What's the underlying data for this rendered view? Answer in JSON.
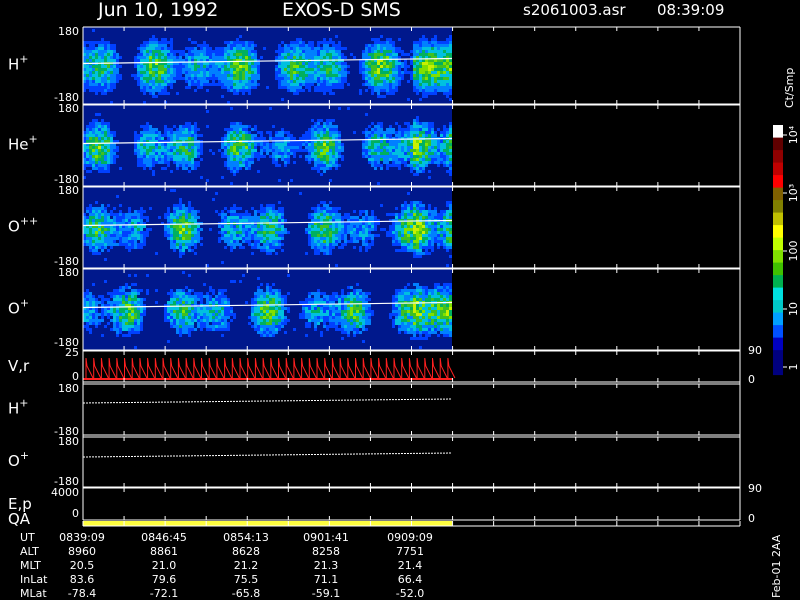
{
  "header": {
    "date": "Jun 10, 1992",
    "instrument": "EXOS-D SMS",
    "file": "s2061003.asr",
    "time": "08:39:09"
  },
  "panels": [
    {
      "label": "H",
      "sup": "+",
      "yticks": [
        180,
        -180
      ]
    },
    {
      "label": "He",
      "sup": "+",
      "yticks": [
        180,
        -180
      ]
    },
    {
      "label": "O",
      "sup": "++",
      "yticks": [
        180,
        -180
      ]
    },
    {
      "label": "O",
      "sup": "+",
      "yticks": [
        180,
        -180
      ]
    },
    {
      "label": "V,r",
      "yticks": [
        25,
        0
      ],
      "y2ticks": [
        90,
        0
      ]
    },
    {
      "label": "H",
      "sup": "+",
      "yticks": [
        180,
        -180
      ]
    },
    {
      "label": "O",
      "sup": "+",
      "yticks": [
        180,
        -180
      ]
    },
    {
      "label": "E,p",
      "label2": "QA",
      "yticks": [
        4000,
        0
      ],
      "y2ticks": [
        90,
        0
      ]
    }
  ],
  "colorbar": {
    "title": "Ct/Smp",
    "ticks": [
      1,
      10,
      100,
      {
        "value": 1000,
        "label": "10³"
      },
      {
        "value": 10000,
        "label": "10⁴"
      }
    ]
  },
  "table": {
    "rows": [
      {
        "name": "UT",
        "values": [
          "0839:09",
          "0846:45",
          "0854:13",
          "0901:41",
          "0909:09"
        ]
      },
      {
        "name": "ALT",
        "values": [
          "8960",
          "8861",
          "8628",
          "8258",
          "7751"
        ]
      },
      {
        "name": "MLT",
        "values": [
          "20.5",
          "21.0",
          "21.2",
          "21.3",
          "21.4"
        ]
      },
      {
        "name": "InLat",
        "values": [
          "83.6",
          "79.6",
          "75.5",
          "71.1",
          "66.4"
        ]
      },
      {
        "name": "MLat",
        "values": [
          "-78.4",
          "-72.1",
          "-65.8",
          "-59.1",
          "-52.0"
        ]
      }
    ]
  },
  "footer": "Feb-01 2AA"
}
